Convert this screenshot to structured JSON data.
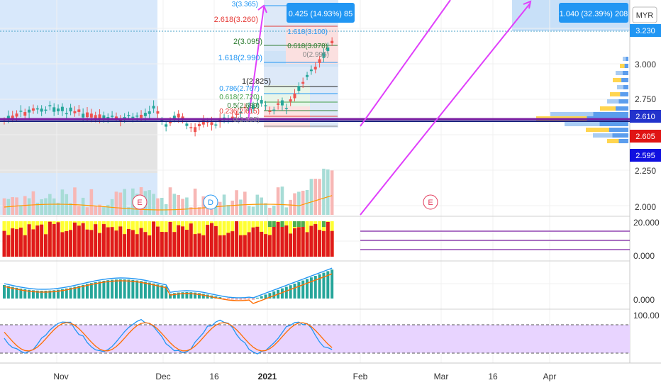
{
  "chart_data": {
    "type": "candlestick",
    "title": "",
    "currency_label": "MYR",
    "x_ticks": [
      "Nov",
      "Dec",
      "16",
      "2021",
      "Feb",
      "Mar",
      "16",
      "Apr"
    ],
    "y_ticks_main": [
      "3.000",
      "2.750",
      "2.250",
      "2.000"
    ],
    "price_tags": [
      {
        "label": "3.230",
        "color": "#2196f3"
      },
      {
        "label": "2.610",
        "color": "#2233cc"
      },
      {
        "label": "2.605",
        "color": "#e01414"
      },
      {
        "label": "2.595",
        "color": "#1010e0"
      }
    ],
    "measure_boxes": [
      {
        "label": "0.425 (14.93%) 85"
      },
      {
        "label": "1.040 (32.39%) 208"
      }
    ],
    "fib_levels": [
      {
        "label": "3(3.365)",
        "color": "#2196f3"
      },
      {
        "label": "2.618(3.260)",
        "color": "#e53935"
      },
      {
        "label": "2(3.095)",
        "color": "#2e7d32"
      },
      {
        "label": "1.618(2.990)",
        "color": "#2196f3"
      },
      {
        "label": "1(2.825)",
        "color": "#222222"
      },
      {
        "label": "0.786(2.767)",
        "color": "#2196f3"
      },
      {
        "label": "0.618(2.720)",
        "color": "#43a047"
      },
      {
        "label": "0.5(2.689)",
        "color": "#2e7d32"
      },
      {
        "label": "0.236(2.615)",
        "color": "#e53935"
      },
      {
        "label": "0(2.555)",
        "color": "#888888"
      }
    ],
    "fib_levels_small": [
      {
        "label": "1.618(3.100)"
      },
      {
        "label": "0.618(3.078)"
      },
      {
        "label": "0(2.995)"
      }
    ],
    "events": [
      {
        "label": "E",
        "color": "#e23a5a"
      },
      {
        "label": "D",
        "color": "#2196f3"
      },
      {
        "label": "E",
        "color": "#e23a5a"
      }
    ],
    "indicators": [
      {
        "name": "",
        "y_ticks": [
          "20.000",
          "0.000"
        ]
      },
      {
        "name": "",
        "y_ticks": [
          "0.000"
        ]
      },
      {
        "name": "",
        "y_ticks": [
          "100.00"
        ]
      }
    ],
    "colors": {
      "up": "#26a69a",
      "down": "#ef5350",
      "trendline": "#e040fb",
      "support": "#7b1fa2",
      "macd": "#2196f3",
      "signal": "#ff6d00",
      "stoch_band": "#e1c8ff"
    },
    "grid": true
  }
}
